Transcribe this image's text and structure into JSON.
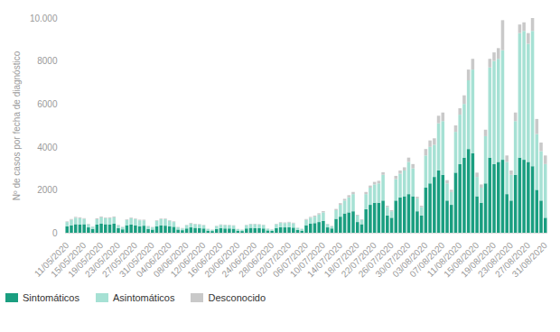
{
  "chart_data": {
    "type": "bar",
    "stacked": true,
    "grid": false,
    "legend": "bottom-left",
    "y_label": "Nº de casos por fecha de diagnóstico",
    "ylim": [
      0,
      10000
    ],
    "yticks": [
      0,
      2000,
      4000,
      6000,
      8000,
      {
        "value": 10000,
        "label": "10.000"
      }
    ],
    "categories": [
      "11/05/2020",
      null,
      null,
      null,
      "15/05/2020",
      null,
      null,
      null,
      "19/05/2020",
      null,
      null,
      null,
      "23/05/2020",
      null,
      null,
      null,
      "27/05/2020",
      null,
      null,
      null,
      "31/05/2020",
      null,
      null,
      null,
      "04/06/2020",
      null,
      null,
      null,
      "08/06/2020",
      null,
      null,
      null,
      "12/06/2020",
      null,
      null,
      null,
      "16/06/2020",
      null,
      null,
      null,
      "20/06/2020",
      null,
      null,
      null,
      "24/06/2020",
      null,
      null,
      null,
      "28/06/2020",
      null,
      null,
      null,
      "02/07/2020",
      null,
      null,
      null,
      "06/07/2020",
      null,
      null,
      null,
      "10/07/2020",
      null,
      null,
      null,
      "14/07/2020",
      null,
      null,
      null,
      "18/07/2020",
      null,
      null,
      null,
      "22/07/2020",
      null,
      null,
      null,
      "26/07/2020",
      null,
      null,
      null,
      "30/07/2020",
      null,
      null,
      null,
      "03/08/2020",
      null,
      null,
      null,
      "07/08/2020",
      null,
      null,
      null,
      "11/08/2020",
      null,
      null,
      null,
      "15/08/2020",
      null,
      null,
      null,
      "19/08/2020",
      null,
      null,
      null,
      "23/08/2020",
      null,
      null,
      null,
      "27/08/2020",
      null,
      null,
      null,
      "31/08/2020"
    ],
    "series": [
      {
        "name": "Sintomáticos",
        "color": "#1a9e80",
        "values": [
          300,
          350,
          400,
          380,
          400,
          250,
          180,
          380,
          420,
          400,
          380,
          420,
          220,
          160,
          350,
          380,
          350,
          300,
          330,
          180,
          150,
          300,
          350,
          330,
          300,
          280,
          150,
          120,
          200,
          250,
          230,
          220,
          200,
          100,
          80,
          180,
          220,
          200,
          200,
          190,
          100,
          80,
          200,
          230,
          220,
          210,
          200,
          110,
          90,
          220,
          260,
          250,
          260,
          240,
          130,
          100,
          350,
          420,
          450,
          500,
          550,
          250,
          200,
          650,
          750,
          900,
          950,
          1000,
          500,
          400,
          1100,
          1300,
          1400,
          1400,
          1500,
          800,
          700,
          1500,
          1650,
          1700,
          1800,
          1700,
          1000,
          800,
          2100,
          2300,
          2600,
          2900,
          2700,
          1500,
          1300,
          2800,
          3200,
          3500,
          3900,
          3700,
          1700,
          1400,
          2300,
          3500,
          3200,
          3300,
          3400,
          1800,
          1500,
          2700,
          3500,
          3400,
          3300,
          3100,
          2000,
          1500,
          700
        ]
      },
      {
        "name": "Asintomáticos",
        "color": "#a6e1d4",
        "values": [
          200,
          250,
          300,
          300,
          250,
          150,
          100,
          250,
          300,
          280,
          300,
          300,
          130,
          100,
          250,
          300,
          280,
          280,
          250,
          120,
          100,
          250,
          280,
          300,
          250,
          220,
          100,
          80,
          150,
          180,
          170,
          160,
          150,
          80,
          60,
          130,
          150,
          160,
          150,
          140,
          70,
          60,
          150,
          170,
          180,
          170,
          160,
          80,
          60,
          180,
          200,
          200,
          220,
          200,
          100,
          80,
          250,
          280,
          300,
          350,
          400,
          150,
          100,
          400,
          550,
          600,
          700,
          800,
          300,
          200,
          700,
          800,
          850,
          900,
          1200,
          400,
          300,
          1000,
          1100,
          1200,
          1500,
          1300,
          600,
          400,
          1500,
          1700,
          1500,
          2200,
          2500,
          800,
          600,
          1900,
          2300,
          2500,
          3200,
          3900,
          900,
          700,
          2200,
          4200,
          4800,
          4800,
          5100,
          1500,
          1200,
          2500,
          5800,
          6000,
          5500,
          6300,
          2600,
          2300,
          2500
        ]
      },
      {
        "name": "Desconocido",
        "color": "#c9c9c9",
        "values": [
          30,
          40,
          40,
          40,
          30,
          20,
          20,
          40,
          40,
          30,
          40,
          40,
          20,
          20,
          30,
          30,
          30,
          30,
          30,
          20,
          20,
          30,
          30,
          30,
          30,
          30,
          20,
          20,
          20,
          30,
          20,
          20,
          20,
          10,
          10,
          20,
          20,
          20,
          20,
          20,
          10,
          10,
          20,
          20,
          20,
          20,
          20,
          10,
          10,
          20,
          30,
          30,
          30,
          30,
          10,
          10,
          40,
          40,
          50,
          60,
          60,
          20,
          20,
          60,
          80,
          80,
          100,
          100,
          40,
          30,
          100,
          100,
          120,
          120,
          120,
          60,
          50,
          150,
          150,
          150,
          200,
          200,
          80,
          60,
          300,
          300,
          300,
          350,
          400,
          150,
          100,
          300,
          300,
          400,
          500,
          500,
          200,
          150,
          300,
          400,
          400,
          500,
          1400,
          300,
          200,
          400,
          400,
          400,
          500,
          600,
          700,
          400,
          400
        ]
      }
    ]
  }
}
